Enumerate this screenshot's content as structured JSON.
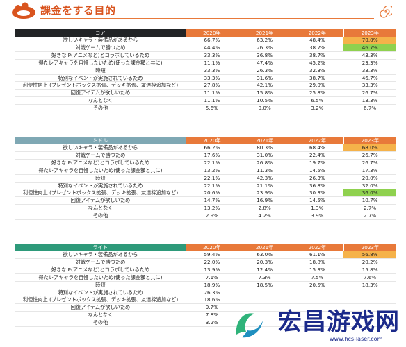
{
  "header": {
    "title": "課金をする目的"
  },
  "years": [
    "2020年",
    "2021年",
    "2022年",
    "2023年"
  ],
  "sections": [
    {
      "name": "コア",
      "rows": [
        {
          "label": "欲しいキャラ・装備品があるから",
          "values": [
            "66.7%",
            "63.2%",
            "48.4%",
            "70.0%"
          ],
          "highlight": "orange"
        },
        {
          "label": "対戦ゲームで勝つため",
          "values": [
            "44.4%",
            "26.3%",
            "38.7%",
            "46.7%"
          ],
          "highlight": "green"
        },
        {
          "label": "好きなIP(アニメなど)とコラボしているため",
          "values": [
            "33.3%",
            "36.8%",
            "38.7%",
            "43.3%"
          ],
          "highlight": ""
        },
        {
          "label": "得たレアキャラを自慢したいため(使った課金額と共に)",
          "values": [
            "11.1%",
            "47.4%",
            "45.2%",
            "23.3%"
          ],
          "highlight": ""
        },
        {
          "label": "時短",
          "values": [
            "33.3%",
            "26.3%",
            "32.3%",
            "33.3%"
          ],
          "highlight": ""
        },
        {
          "label": "特別なイベントが実施されているため",
          "values": [
            "33.3%",
            "31.6%",
            "38.7%",
            "46.7%"
          ],
          "highlight": ""
        },
        {
          "label": "利便性向上 (プレゼントボックス拡張、デッキ拡張、友達枠追加など)",
          "values": [
            "27.8%",
            "42.1%",
            "29.0%",
            "33.3%"
          ],
          "highlight": ""
        },
        {
          "label": "回復アイテムが欲しいため",
          "values": [
            "11.1%",
            "15.8%",
            "25.8%",
            "26.7%"
          ],
          "highlight": ""
        },
        {
          "label": "なんとなく",
          "values": [
            "11.1%",
            "10.5%",
            "6.5%",
            "13.3%"
          ],
          "highlight": ""
        },
        {
          "label": "その他",
          "values": [
            "5.6%",
            "0.0%",
            "3.2%",
            "6.7%"
          ],
          "highlight": ""
        }
      ]
    },
    {
      "name": "ミドル",
      "rows": [
        {
          "label": "欲しいキャラ・装備品があるから",
          "values": [
            "66.2%",
            "80.3%",
            "68.4%",
            "68.0%"
          ],
          "highlight": "orange"
        },
        {
          "label": "対戦ゲームで勝つため",
          "values": [
            "17.6%",
            "31.0%",
            "22.4%",
            "26.7%"
          ],
          "highlight": ""
        },
        {
          "label": "好きなIP(アニメなど)とコラボしているため",
          "values": [
            "22.1%",
            "26.8%",
            "19.7%",
            "26.7%"
          ],
          "highlight": ""
        },
        {
          "label": "得たレアキャラを自慢したいため(使った課金額と共に)",
          "values": [
            "13.2%",
            "11.3%",
            "14.5%",
            "17.3%"
          ],
          "highlight": ""
        },
        {
          "label": "時短",
          "values": [
            "22.1%",
            "42.3%",
            "26.3%",
            "20.0%"
          ],
          "highlight": ""
        },
        {
          "label": "特別なイベントが実施されているため",
          "values": [
            "22.1%",
            "21.1%",
            "36.8%",
            "32.0%"
          ],
          "highlight": ""
        },
        {
          "label": "利便性向上 (プレゼントボックス拡張、デッキ拡張、友達枠追加など)",
          "values": [
            "20.6%",
            "23.9%",
            "30.3%",
            "36.0%"
          ],
          "highlight": "green"
        },
        {
          "label": "回復アイテムが欲しいため",
          "values": [
            "14.7%",
            "16.9%",
            "14.5%",
            "10.7%"
          ],
          "highlight": ""
        },
        {
          "label": "なんとなく",
          "values": [
            "13.2%",
            "2.8%",
            "1.3%",
            "2.7%"
          ],
          "highlight": ""
        },
        {
          "label": "その他",
          "values": [
            "2.9%",
            "4.2%",
            "3.9%",
            "2.7%"
          ],
          "highlight": ""
        }
      ]
    },
    {
      "name": "ライト",
      "rows": [
        {
          "label": "欲しいキャラ・装備品があるから",
          "values": [
            "59.4%",
            "63.0%",
            "61.1%",
            "56.8%"
          ],
          "highlight": "orange"
        },
        {
          "label": "対戦ゲームで勝つため",
          "values": [
            "22.0%",
            "20.3%",
            "18.8%",
            "20.2%"
          ],
          "highlight": ""
        },
        {
          "label": "好きなIP(アニメなど)とコラボしているため",
          "values": [
            "13.9%",
            "12.4%",
            "15.3%",
            "15.8%"
          ],
          "highlight": ""
        },
        {
          "label": "得たレアキャラを自慢したいため(使った課金額と共に)",
          "values": [
            "7.1%",
            "7.3%",
            "7.5%",
            "7.6%"
          ],
          "highlight": ""
        },
        {
          "label": "時短",
          "values": [
            "18.9%",
            "18.5%",
            "20.5%",
            "18.3%"
          ],
          "highlight": ""
        },
        {
          "label": "特別なイベントが実施されているため",
          "values": [
            "26.3%",
            "",
            "",
            ""
          ],
          "highlight": ""
        },
        {
          "label": "利便性向上 (プレゼントボックス拡張、デッキ拡張、友達枠追加など)",
          "values": [
            "18.6%",
            "",
            "",
            ""
          ],
          "highlight": ""
        },
        {
          "label": "回復アイテムが欲しいため",
          "values": [
            "9.7%",
            "",
            "",
            ""
          ],
          "highlight": ""
        },
        {
          "label": "なんとなく",
          "values": [
            "7.8%",
            "",
            "",
            ""
          ],
          "highlight": ""
        },
        {
          "label": "その他",
          "values": [
            "3.2%",
            "",
            "",
            ""
          ],
          "highlight": ""
        }
      ]
    }
  ],
  "colors": {
    "accent": "#e8793a",
    "highlight_green": "#8fd14f",
    "highlight_orange": "#f5b24a",
    "core_header": "#222426",
    "middle_header": "#7fa8b4",
    "light_header": "#2e9a7a",
    "watermark": "#1b2a8a"
  },
  "watermark": {
    "text": "宏昌游戏网",
    "url": "www.hcs-laser.com"
  }
}
